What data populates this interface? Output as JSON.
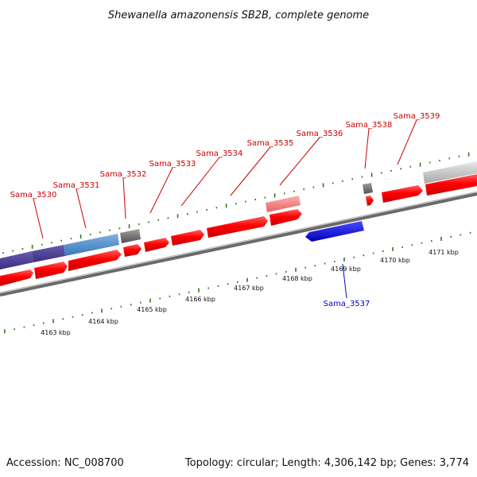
{
  "title": "Shewanella amazonensis SB2B, complete genome",
  "footer": {
    "accession": "Accession: NC_008700",
    "summary": "Topology: circular; Length: 4,306,142 bp; Genes: 3,774"
  },
  "colors": {
    "forward_label": "#cc0000",
    "reverse_label": "#0000cc",
    "tick": "#2a7a1a",
    "backbone": "#777777"
  },
  "kbp_labels": [
    "4163 kbp",
    "4164 kbp",
    "4165 kbp",
    "4166 kbp",
    "4167 kbp",
    "4168 kbp",
    "4169 kbp",
    "4170 kbp",
    "4171 kbp"
  ],
  "gene_labels": [
    {
      "text": "Sama_3530",
      "strand": "forward"
    },
    {
      "text": "Sama_3531",
      "strand": "forward"
    },
    {
      "text": "Sama_3532",
      "strand": "forward"
    },
    {
      "text": "Sama_3533",
      "strand": "forward"
    },
    {
      "text": "Sama_3534",
      "strand": "forward"
    },
    {
      "text": "Sama_3535",
      "strand": "forward"
    },
    {
      "text": "Sama_3536",
      "strand": "forward"
    },
    {
      "text": "Sama_3538",
      "strand": "forward"
    },
    {
      "text": "Sama_3539",
      "strand": "forward"
    },
    {
      "text": "Sama_3537",
      "strand": "reverse"
    }
  ]
}
